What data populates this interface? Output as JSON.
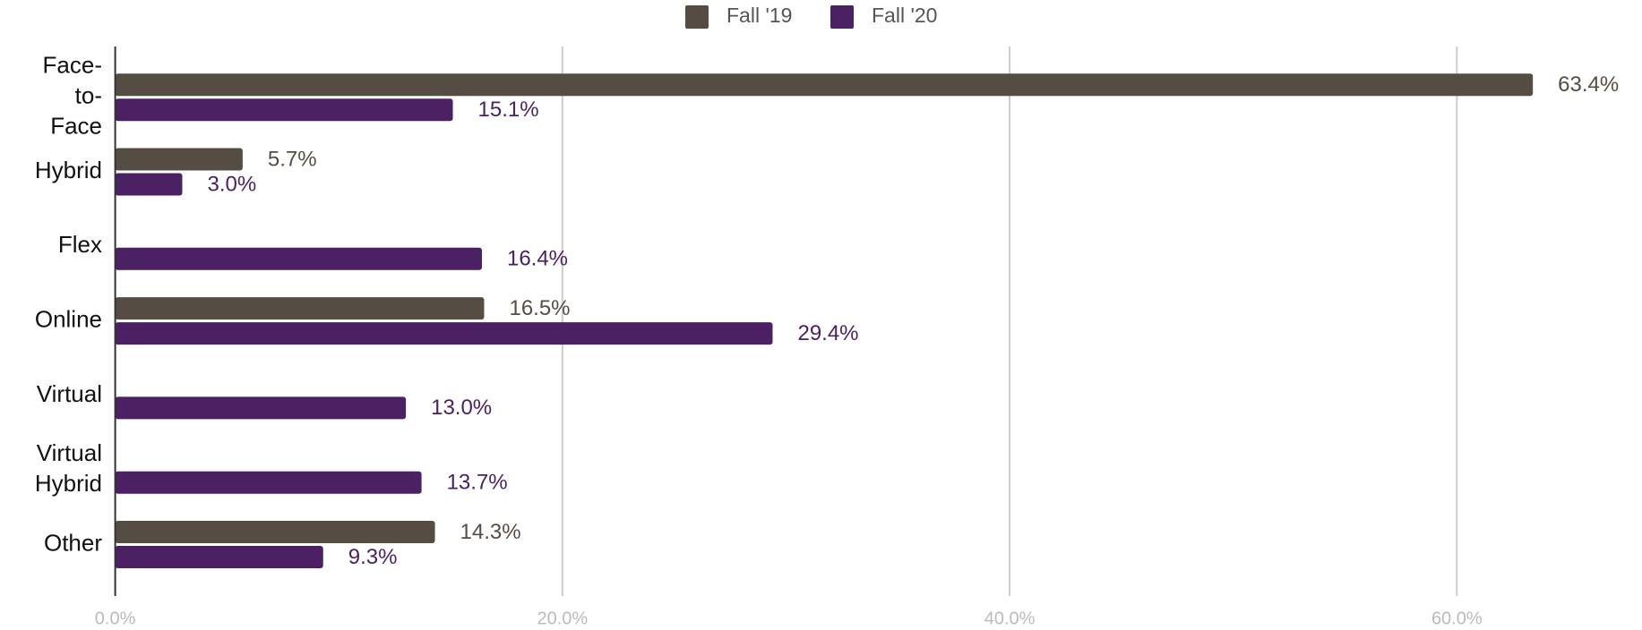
{
  "chart_data": {
    "type": "bar",
    "orientation": "horizontal",
    "categories": [
      "Face-to-Face",
      "Hybrid",
      "Flex",
      "Online",
      "Virtual",
      "Virtual Hybrid",
      "Other"
    ],
    "series": [
      {
        "name": "Fall '19",
        "color": "#554d44",
        "values": [
          63.4,
          5.7,
          null,
          16.5,
          null,
          null,
          14.3
        ],
        "value_labels": [
          "63.4%",
          "5.7%",
          null,
          "16.5%",
          null,
          null,
          "14.3%"
        ]
      },
      {
        "name": "Fall '20",
        "color": "#4b2163",
        "values": [
          15.1,
          3.0,
          16.4,
          29.4,
          13.0,
          13.7,
          9.3
        ],
        "value_labels": [
          "15.1%",
          "3.0%",
          "16.4%",
          "29.4%",
          "13.0%",
          "13.7%",
          "9.3%"
        ]
      }
    ],
    "xlim": [
      0,
      68
    ],
    "xticks": [
      {
        "value": 0,
        "label": "0.0%"
      },
      {
        "value": 20,
        "label": "20.0%"
      },
      {
        "value": 40,
        "label": "40.0%"
      },
      {
        "value": 60,
        "label": "60.0%"
      }
    ],
    "grid": true,
    "legend": "top"
  }
}
